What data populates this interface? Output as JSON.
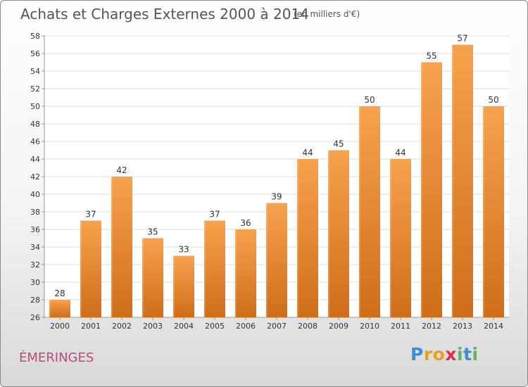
{
  "header": {
    "title": "Achats et Charges Externes 2000 à 2014",
    "unit": "(en milliers d'€)"
  },
  "footer": {
    "commune": "ÉMERINGES",
    "logo_letters": [
      {
        "char": "P",
        "color": "#3a8fd6"
      },
      {
        "char": "r",
        "color": "#e8a020"
      },
      {
        "char": "o",
        "color": "#e8a020"
      },
      {
        "char": "x",
        "color": "#d6304a"
      },
      {
        "char": "i",
        "color": "#5cb85c"
      },
      {
        "char": "t",
        "color": "#3a8fd6"
      },
      {
        "char": "i",
        "color": "#5cb85c"
      }
    ]
  },
  "colors": {
    "bar_top": "#f7a24d",
    "bar_bottom": "#cf6d1a",
    "grid": "#dddddd",
    "axis": "#999999"
  },
  "chart_data": {
    "type": "bar",
    "title": "Achats et Charges Externes 2000 à 2014",
    "subtitle": "(en milliers d'€)",
    "xlabel": "",
    "ylabel": "",
    "categories": [
      "2000",
      "2001",
      "2002",
      "2003",
      "2004",
      "2005",
      "2006",
      "2007",
      "2008",
      "2009",
      "2010",
      "2011",
      "2012",
      "2013",
      "2014"
    ],
    "values": [
      28,
      37,
      42,
      35,
      33,
      37,
      36,
      39,
      44,
      45,
      50,
      44,
      55,
      57,
      50
    ],
    "ylim": [
      26,
      58
    ],
    "yticks": [
      26,
      28,
      30,
      32,
      34,
      36,
      38,
      40,
      42,
      44,
      46,
      48,
      50,
      52,
      54,
      56,
      58
    ],
    "grid": true,
    "legend": "none"
  }
}
